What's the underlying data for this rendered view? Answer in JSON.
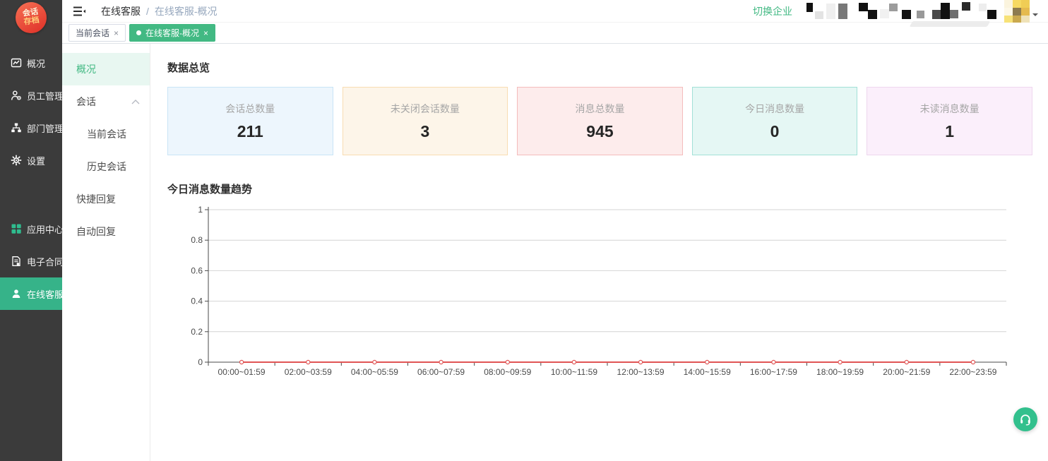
{
  "logo": {
    "line1": "会话",
    "line2": "存档"
  },
  "header": {
    "breadcrumb": {
      "root": "在线客服",
      "separator": "/",
      "current": "在线客服-概况"
    },
    "switch_company": "切换企业"
  },
  "tabs": [
    {
      "label": "当前会话",
      "close": "×",
      "active": false
    },
    {
      "label": "在线客服-概况",
      "close": "×",
      "active": true
    }
  ],
  "sidebar": {
    "items": [
      {
        "label": "概况",
        "icon": "overview-chart-icon",
        "active": false,
        "spaced": false
      },
      {
        "label": "员工管理",
        "icon": "staff-icon",
        "active": false,
        "spaced": false
      },
      {
        "label": "部门管理",
        "icon": "department-icon",
        "active": false,
        "spaced": false
      },
      {
        "label": "设置",
        "icon": "settings-gear-icon",
        "active": false,
        "spaced": false
      },
      {
        "label": "应用中心",
        "icon": "app-center-icon",
        "active": false,
        "spaced": true
      },
      {
        "label": "电子合同",
        "icon": "e-contract-icon",
        "active": false,
        "spaced": false
      },
      {
        "label": "在线客服",
        "icon": "online-service-icon",
        "active": true,
        "spaced": false
      }
    ]
  },
  "submenu": {
    "items": [
      {
        "label": "概况",
        "active": true,
        "child": false,
        "expandable": false
      },
      {
        "label": "会话",
        "active": false,
        "child": false,
        "expandable": true
      },
      {
        "label": "当前会话",
        "active": false,
        "child": true,
        "expandable": false
      },
      {
        "label": "历史会话",
        "active": false,
        "child": true,
        "expandable": false
      },
      {
        "label": "快捷回复",
        "active": false,
        "child": false,
        "expandable": false
      },
      {
        "label": "自动回复",
        "active": false,
        "child": false,
        "expandable": false
      }
    ]
  },
  "overview": {
    "title": "数据总览",
    "cards": [
      {
        "label": "会话总数量",
        "value": "211",
        "bg": "#edf6fd",
        "border": "#c9e4f6"
      },
      {
        "label": "未关闭会话数量",
        "value": "3",
        "bg": "#fdf5e9",
        "border": "#f8dcb2"
      },
      {
        "label": "消息总数量",
        "value": "945",
        "bg": "#fdecec",
        "border": "#f4bcbc"
      },
      {
        "label": "今日消息数量",
        "value": "0",
        "bg": "#e5f7f4",
        "border": "#a2e1d7"
      },
      {
        "label": "未读消息数量",
        "value": "1",
        "bg": "#fbeffb",
        "border": "#eed7ee"
      }
    ]
  },
  "chart_data": {
    "type": "line",
    "title": "今日消息数量趋势",
    "categories": [
      "00:00~01:59",
      "02:00~03:59",
      "04:00~05:59",
      "06:00~07:59",
      "08:00~09:59",
      "10:00~11:59",
      "12:00~13:59",
      "14:00~15:59",
      "16:00~17:59",
      "18:00~19:59",
      "20:00~21:59",
      "22:00~23:59"
    ],
    "values": [
      0,
      0,
      0,
      0,
      0,
      0,
      0,
      0,
      0,
      0,
      0,
      0
    ],
    "yticks": [
      0,
      0.2,
      0.4,
      0.6,
      0.8,
      1
    ],
    "ylim": [
      0,
      1
    ],
    "xlabel": "",
    "ylabel": "",
    "grid": true,
    "legend": "none",
    "line_color": "#e05555",
    "marker": "hollow-circle"
  },
  "colors": {
    "accent_green": "#42b983",
    "sidebar_active": "#36b389",
    "sidebar_bg": "#3b3b3b"
  }
}
